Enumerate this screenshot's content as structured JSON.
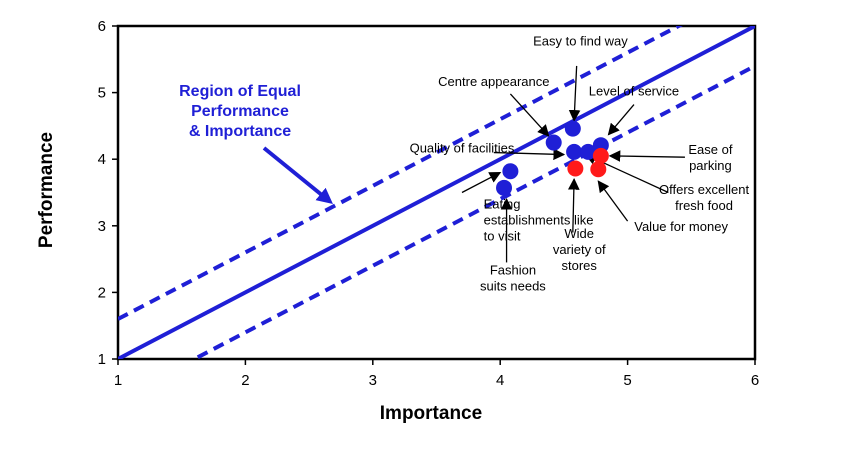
{
  "chart_data": {
    "type": "scatter",
    "title": "",
    "xlabel": "Importance",
    "ylabel": "Performance",
    "xlim": [
      1,
      6
    ],
    "ylim": [
      1,
      6
    ],
    "xticks": [
      "1",
      "2",
      "3",
      "4",
      "5",
      "6"
    ],
    "yticks": [
      "1",
      "2",
      "3",
      "4",
      "5",
      "6"
    ],
    "grid": false,
    "colors": {
      "line": "#1f1fd6",
      "blue_point": "#1f1fd6",
      "red_point": "#ff1a1a"
    },
    "lines": {
      "equality": {
        "x": [
          1,
          6
        ],
        "y": [
          1,
          6
        ],
        "style": "solid"
      },
      "upper_band": {
        "x": [
          1,
          6
        ],
        "y": [
          1.6,
          6.6
        ],
        "style": "dashed"
      },
      "lower_band": {
        "x": [
          1,
          6
        ],
        "y": [
          0.4,
          5.4
        ],
        "style": "dashed"
      }
    },
    "region_label": [
      "Region of Equal",
      "Performance",
      "& Importance"
    ],
    "points": [
      {
        "x": 4.57,
        "y": 4.46,
        "color": "blue"
      },
      {
        "x": 4.42,
        "y": 4.25,
        "color": "blue"
      },
      {
        "x": 4.79,
        "y": 4.21,
        "color": "blue"
      },
      {
        "x": 4.58,
        "y": 4.11,
        "color": "blue"
      },
      {
        "x": 4.69,
        "y": 4.11,
        "color": "blue"
      },
      {
        "x": 4.08,
        "y": 3.82,
        "color": "blue"
      },
      {
        "x": 4.03,
        "y": 3.57,
        "color": "blue"
      },
      {
        "x": 4.79,
        "y": 4.05,
        "color": "red"
      },
      {
        "x": 4.59,
        "y": 3.86,
        "color": "red"
      },
      {
        "x": 4.77,
        "y": 3.85,
        "color": "red"
      }
    ],
    "annotations": [
      {
        "lines": [
          "Easy to find way"
        ],
        "x": 4.63,
        "y": 5.71,
        "anchor": "middle",
        "arrow": [
          4.6,
          5.4,
          4.58,
          4.58
        ]
      },
      {
        "lines": [
          "Centre appearance"
        ],
        "x": 3.95,
        "y": 5.1,
        "anchor": "middle",
        "arrow": [
          4.08,
          4.98,
          4.38,
          4.35
        ]
      },
      {
        "lines": [
          "Level of service"
        ],
        "x": 5.05,
        "y": 4.96,
        "anchor": "middle",
        "arrow": [
          5.05,
          4.82,
          4.85,
          4.37
        ]
      },
      {
        "lines": [
          "Quality of facilities"
        ],
        "x": 3.7,
        "y": 4.1,
        "anchor": "middle",
        "arrow": [
          3.95,
          4.1,
          4.5,
          4.07
        ]
      },
      {
        "lines": [
          "Ease of",
          "parking"
        ],
        "x": 5.65,
        "y": 4.08,
        "anchor": "middle",
        "arrow": [
          5.45,
          4.03,
          4.86,
          4.05
        ]
      },
      {
        "lines": [
          "Offers excellent",
          "fresh food"
        ],
        "x": 5.6,
        "y": 3.48,
        "anchor": "middle",
        "arrow": [
          5.32,
          3.5,
          4.67,
          4.07
        ]
      },
      {
        "lines": [
          "Value for money"
        ],
        "x": 5.42,
        "y": 2.92,
        "anchor": "middle",
        "arrow": [
          5.0,
          3.07,
          4.77,
          3.67
        ]
      },
      {
        "lines": [
          "Wide",
          "variety of",
          "stores"
        ],
        "x": 4.62,
        "y": 2.82,
        "anchor": "middle",
        "arrow": [
          4.57,
          2.9,
          4.58,
          3.7
        ]
      },
      {
        "lines": [
          "Eating",
          "establishments like",
          "to visit"
        ],
        "x": 3.87,
        "y": 3.26,
        "anchor": "start",
        "arrow": [
          3.7,
          3.5,
          4.0,
          3.8
        ]
      },
      {
        "lines": [
          "Fashion",
          "suits needs"
        ],
        "x": 4.1,
        "y": 2.27,
        "anchor": "middle",
        "arrow": [
          4.05,
          2.45,
          4.05,
          3.4
        ]
      }
    ]
  }
}
